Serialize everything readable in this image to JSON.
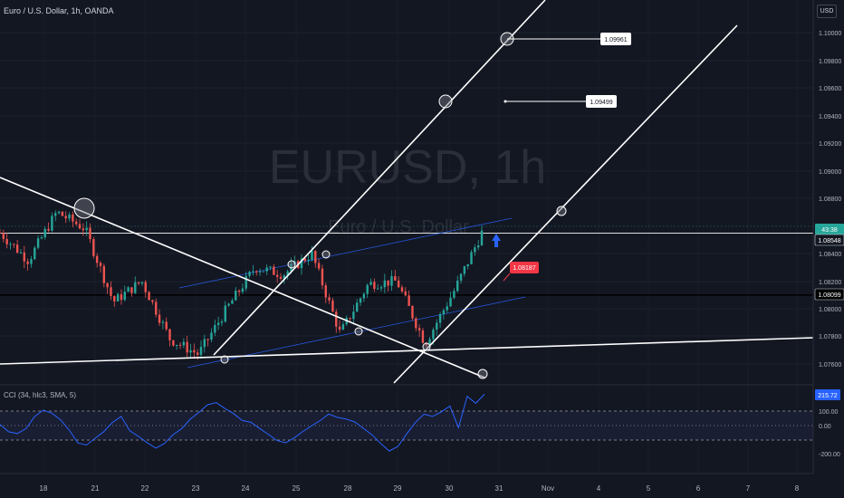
{
  "header": {
    "symbol_title": "Euro / U.S. Dollar, 1h, OANDA",
    "currency": "USD"
  },
  "watermark": {
    "symbol": "EURUSD, 1h",
    "description": "Euro / U.S. Dollar"
  },
  "colors": {
    "background": "#131722",
    "up": "#26a69a",
    "down": "#ef5350",
    "trendline": "#ffffff",
    "channel": "#2962ff",
    "cci_line": "#2962ff",
    "price_badge": "#26a69a",
    "entry_badge": "#f23645",
    "cci_badge": "#2962ff",
    "arrow": "#2962ff"
  },
  "cci_panel": {
    "title": "CCI (34, hlc3, SMA, 5)",
    "current": "215.72",
    "band_upper": 100,
    "band_lower": -100,
    "ticks": [
      "100.00",
      "0.00",
      "-200.00"
    ]
  },
  "price_axis": {
    "ticks": [
      "1.10000",
      "1.09800",
      "1.09600",
      "1.09400",
      "1.09200",
      "1.09000",
      "1.08800",
      "1.08400",
      "1.08200",
      "1.08000",
      "1.07800",
      "1.07600"
    ],
    "badges": {
      "top": "43:38",
      "current": "1.08548",
      "support": "1.08099"
    }
  },
  "time_axis": {
    "ticks": [
      "18",
      "21",
      "22",
      "23",
      "24",
      "25",
      "28",
      "29",
      "30",
      "31",
      "Nov",
      "4",
      "5",
      "6",
      "7",
      "8"
    ]
  },
  "annotations": {
    "target_1": "1.09961",
    "target_2": "1.09499",
    "entry": "1.08187"
  },
  "chart_data": {
    "type": "candlestick",
    "symbol": "EURUSD",
    "timeframe": "1h",
    "price_levels": {
      "current": 1.08548,
      "support": 1.08099,
      "target_1": 1.09961,
      "target_2": 1.09499,
      "entry": 1.08187
    },
    "close_path": [
      {
        "date": "Oct 17",
        "price": 1.0855
      },
      {
        "date": "Oct 18",
        "price": 1.0835
      },
      {
        "date": "Oct 21",
        "price": 1.087
      },
      {
        "date": "Oct 21",
        "price": 1.0858
      },
      {
        "date": "Oct 22",
        "price": 1.0805
      },
      {
        "date": "Oct 22",
        "price": 1.082
      },
      {
        "date": "Oct 23",
        "price": 1.0778
      },
      {
        "date": "Oct 23",
        "price": 1.0767
      },
      {
        "date": "Oct 24",
        "price": 1.08
      },
      {
        "date": "Oct 24",
        "price": 1.083
      },
      {
        "date": "Oct 25",
        "price": 1.0825
      },
      {
        "date": "Oct 25",
        "price": 1.084
      },
      {
        "date": "Oct 28",
        "price": 1.0782
      },
      {
        "date": "Oct 28",
        "price": 1.0818
      },
      {
        "date": "Oct 29",
        "price": 1.082
      },
      {
        "date": "Oct 29",
        "price": 1.0775
      },
      {
        "date": "Oct 30",
        "price": 1.0812
      },
      {
        "date": "Oct 30",
        "price": 1.0855
      }
    ]
  }
}
